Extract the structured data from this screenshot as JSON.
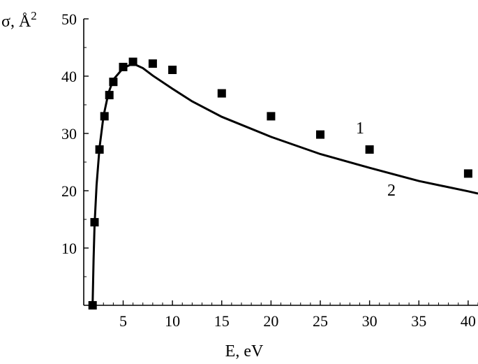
{
  "chart_data": {
    "type": "scatter",
    "xlabel": "E, eV",
    "ylabel_main": "σ, Å",
    "ylabel_sup": "2",
    "xlim": [
      1,
      41
    ],
    "ylim": [
      0,
      50
    ],
    "x_ticks": [
      "5",
      "10",
      "15",
      "20",
      "25",
      "30",
      "35",
      "40"
    ],
    "y_ticks": [
      "10",
      "20",
      "30",
      "40",
      "50"
    ],
    "series": [
      {
        "name": "1",
        "style": "markers",
        "color": "#000000",
        "points": [
          [
            1.9,
            0
          ],
          [
            2.1,
            14.5
          ],
          [
            2.6,
            27.2
          ],
          [
            3.1,
            33
          ],
          [
            3.6,
            36.7
          ],
          [
            4.0,
            39
          ],
          [
            5.0,
            41.6
          ],
          [
            6.0,
            42.5
          ],
          [
            8.0,
            42.2
          ],
          [
            10.0,
            41.1
          ],
          [
            15.0,
            37
          ],
          [
            20.0,
            33
          ],
          [
            25.0,
            29.8
          ],
          [
            30.0,
            27.2
          ],
          [
            40.0,
            23
          ]
        ]
      },
      {
        "name": "2",
        "style": "line",
        "color": "#000000",
        "points": [
          [
            1.9,
            0
          ],
          [
            2.0,
            8
          ],
          [
            2.1,
            14
          ],
          [
            2.3,
            21
          ],
          [
            2.6,
            27.5
          ],
          [
            3.0,
            33
          ],
          [
            3.5,
            37
          ],
          [
            4.0,
            39.4
          ],
          [
            5.0,
            41.4
          ],
          [
            6.0,
            42.2
          ],
          [
            7.0,
            41.4
          ],
          [
            8.0,
            40.1
          ],
          [
            10.0,
            37.8
          ],
          [
            12.0,
            35.6
          ],
          [
            15.0,
            32.9
          ],
          [
            20.0,
            29.4
          ],
          [
            25.0,
            26.4
          ],
          [
            30.0,
            24.0
          ],
          [
            35.0,
            21.7
          ],
          [
            40.0,
            19.9
          ],
          [
            41.0,
            19.5
          ]
        ]
      }
    ]
  }
}
